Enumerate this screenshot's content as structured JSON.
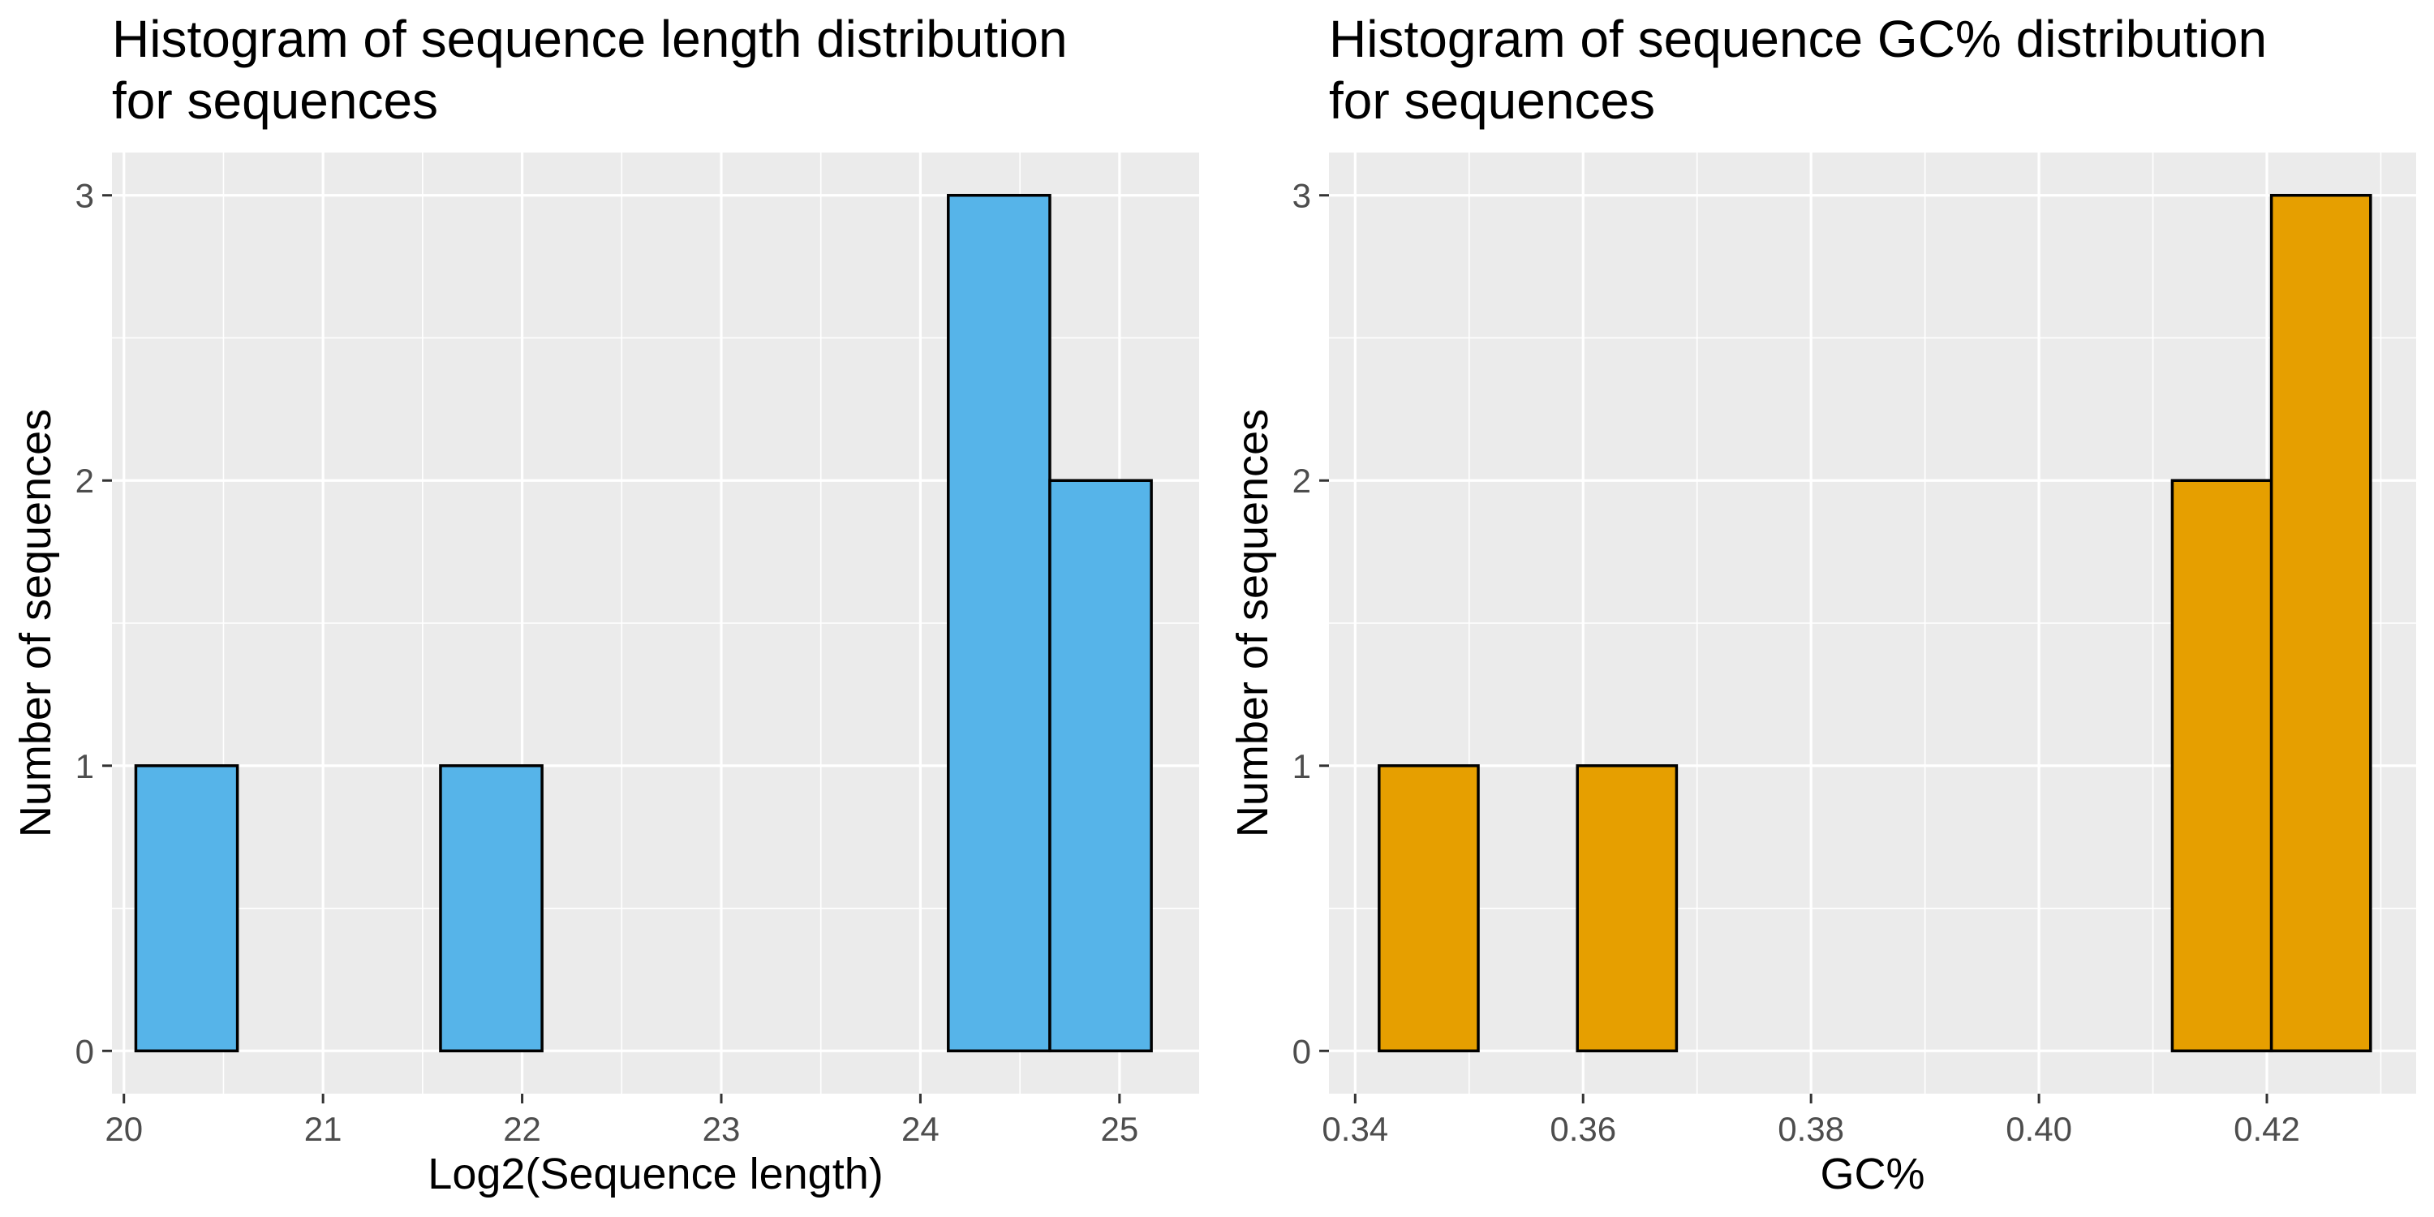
{
  "colors": {
    "panel_background": "#ebebeb",
    "grid_line": "#ffffff",
    "tick_mark": "#333333",
    "bar_outline": "#000000"
  },
  "chart_data": [
    {
      "type": "bar",
      "subtype": "histogram",
      "title_lines": [
        "Histogram of sequence length distribution",
        "for sequences"
      ],
      "xlabel": "Log2(Sequence length)",
      "ylabel": "Number of sequences",
      "bar_color": "#56b4e9",
      "xlim": [
        19.94,
        25.4
      ],
      "ylim": [
        -0.15,
        3.15
      ],
      "x_ticks": [
        20,
        21,
        22,
        23,
        24,
        25
      ],
      "x_tick_labels": [
        "20",
        "21",
        "22",
        "23",
        "24",
        "25"
      ],
      "y_ticks": [
        0,
        1,
        2,
        3
      ],
      "y_tick_labels": [
        "0",
        "1",
        "2",
        "3"
      ],
      "bin_width": 0.51,
      "bins": [
        {
          "x0": 20.06,
          "x1": 20.57,
          "count": 1
        },
        {
          "x0": 20.57,
          "x1": 21.08,
          "count": 0
        },
        {
          "x0": 21.08,
          "x1": 21.59,
          "count": 0
        },
        {
          "x0": 21.59,
          "x1": 22.1,
          "count": 1
        },
        {
          "x0": 22.1,
          "x1": 22.61,
          "count": 0
        },
        {
          "x0": 22.61,
          "x1": 23.12,
          "count": 0
        },
        {
          "x0": 23.12,
          "x1": 23.63,
          "count": 0
        },
        {
          "x0": 23.63,
          "x1": 24.14,
          "count": 0
        },
        {
          "x0": 24.14,
          "x1": 24.65,
          "count": 3
        },
        {
          "x0": 24.65,
          "x1": 25.16,
          "count": 2
        }
      ],
      "grid": true
    },
    {
      "type": "bar",
      "subtype": "histogram",
      "title_lines": [
        "Histogram of sequence GC% distribution",
        "for sequences"
      ],
      "xlabel": "GC%",
      "ylabel": "Number of sequences",
      "bar_color": "#e69f00",
      "xlim": [
        0.3377,
        0.4331
      ],
      "ylim": [
        -0.15,
        3.15
      ],
      "x_ticks": [
        0.34,
        0.36,
        0.38,
        0.4,
        0.42
      ],
      "x_tick_labels": [
        "0.34",
        "0.36",
        "0.38",
        "0.40",
        "0.42"
      ],
      "y_ticks": [
        0,
        1,
        2,
        3
      ],
      "y_tick_labels": [
        "0",
        "1",
        "2",
        "3"
      ],
      "bin_width": 0.0087,
      "bins": [
        {
          "x0": 0.3421,
          "x1": 0.3508,
          "count": 1
        },
        {
          "x0": 0.3508,
          "x1": 0.3595,
          "count": 0
        },
        {
          "x0": 0.3595,
          "x1": 0.3682,
          "count": 1
        },
        {
          "x0": 0.3682,
          "x1": 0.3769,
          "count": 0
        },
        {
          "x0": 0.3769,
          "x1": 0.3856,
          "count": 0
        },
        {
          "x0": 0.3856,
          "x1": 0.3943,
          "count": 0
        },
        {
          "x0": 0.3943,
          "x1": 0.403,
          "count": 0
        },
        {
          "x0": 0.403,
          "x1": 0.4117,
          "count": 0
        },
        {
          "x0": 0.4117,
          "x1": 0.4204,
          "count": 2
        },
        {
          "x0": 0.4204,
          "x1": 0.4291,
          "count": 3
        }
      ],
      "grid": true
    }
  ]
}
